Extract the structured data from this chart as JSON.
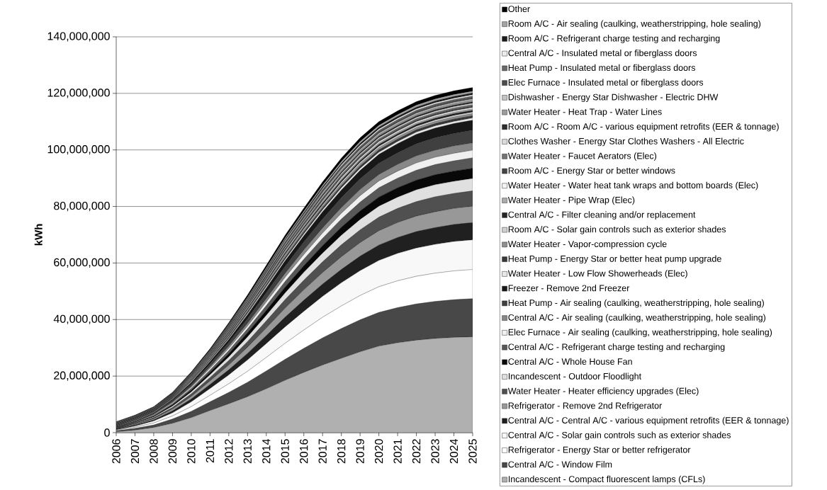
{
  "chart_data": {
    "type": "area",
    "stacked": true,
    "ylabel": "kWh",
    "legend": "right",
    "grid": "y",
    "categories": [
      "2006",
      "2007",
      "2008",
      "2009",
      "2010",
      "2011",
      "2012",
      "2013",
      "2014",
      "2015",
      "2016",
      "2017",
      "2018",
      "2019",
      "2020",
      "2021",
      "2022",
      "2023",
      "2024",
      "2025"
    ],
    "ylim": [
      0,
      140000000
    ],
    "yticks": [
      0,
      {
        "value": 20000000,
        "label": "20,000,000"
      },
      {
        "value": 40000000,
        "label": "40,000,000"
      },
      {
        "value": 60000000,
        "label": "60,000,000"
      },
      {
        "value": 80000000,
        "label": "80,000,000"
      },
      {
        "value": 100000000,
        "label": "100,000,000"
      },
      {
        "value": 120000000,
        "label": "120,000,000"
      },
      {
        "value": 140000000,
        "label": "140,000,000"
      }
    ],
    "series": [
      {
        "name": "Incandescent - Compact fluorescent lamps (CFLs)",
        "color": "#b0b0b0",
        "values": [
          300000,
          900000,
          1800000,
          3300000,
          5300000,
          7800000,
          10200000,
          12700000,
          15500000,
          18500000,
          21300000,
          23900000,
          26300000,
          28600000,
          30600000,
          31800000,
          32700000,
          33300000,
          33700000,
          33900000
        ]
      },
      {
        "name": "Central A/C - Window Film",
        "color": "#484848",
        "values": [
          300000,
          600000,
          900000,
          1500000,
          2200000,
          3100000,
          4000000,
          5100000,
          6300000,
          7400000,
          8500000,
          9600000,
          10500000,
          11300000,
          11900000,
          12400000,
          12800000,
          13100000,
          13300000,
          13500000
        ]
      },
      {
        "name": "Refrigerator - Energy Star or better refrigerator",
        "color": "#ffffff",
        "values": [
          200000,
          400000,
          700000,
          1100000,
          1700000,
          2300000,
          3100000,
          3900000,
          4800000,
          5700000,
          6500000,
          7300000,
          8000000,
          8600000,
          9100000,
          9500000,
          9800000,
          10000000,
          10200000,
          10300000
        ]
      },
      {
        "name": "Central A/C - Solar gain controls such as exterior shades",
        "color": "#f8f8f8",
        "values": [
          200000,
          400000,
          700000,
          1100000,
          1700000,
          2400000,
          3100000,
          4000000,
          4900000,
          5800000,
          6600000,
          7400000,
          8200000,
          8800000,
          9300000,
          9700000,
          10000000,
          10200000,
          10400000,
          10500000
        ]
      },
      {
        "name": "Central A/C - Central A/C - various equipment retrofits (EER & tonnage)",
        "color": "#202020",
        "values": [
          100000,
          300000,
          400000,
          700000,
          1000000,
          1400000,
          1800000,
          2300000,
          2800000,
          3400000,
          3900000,
          4300000,
          4700000,
          5100000,
          5400000,
          5600000,
          5800000,
          5900000,
          6000000,
          6100000
        ]
      },
      {
        "name": "Refrigerator - Remove 2nd Refrigerator",
        "color": "#989898",
        "values": [
          100000,
          200000,
          400000,
          600000,
          900000,
          1300000,
          1700000,
          2200000,
          2700000,
          3200000,
          3700000,
          4100000,
          4500000,
          4800000,
          5100000,
          5300000,
          5500000,
          5600000,
          5700000,
          5800000
        ]
      },
      {
        "name": "Water Heater - Heater efficiency upgrades (Elec)",
        "color": "#505050",
        "values": [
          100000,
          200000,
          400000,
          600000,
          900000,
          1200000,
          1600000,
          2000000,
          2500000,
          3000000,
          3400000,
          3800000,
          4200000,
          4500000,
          4800000,
          5000000,
          5100000,
          5300000,
          5300000,
          5400000
        ]
      },
      {
        "name": "Incandescent - Outdoor Floodlight",
        "color": "#e0e0e0",
        "values": [
          100000,
          200000,
          300000,
          500000,
          700000,
          1000000,
          1300000,
          1700000,
          2000000,
          2400000,
          2800000,
          3100000,
          3400000,
          3700000,
          3900000,
          4000000,
          4200000,
          4300000,
          4300000,
          4400000
        ]
      },
      {
        "name": "Central A/C - Whole House Fan",
        "color": "#080808",
        "values": [
          100000,
          100000,
          200000,
          400000,
          600000,
          800000,
          1100000,
          1400000,
          1700000,
          2000000,
          2300000,
          2600000,
          2800000,
          3000000,
          3200000,
          3300000,
          3400000,
          3500000,
          3600000,
          3600000
        ]
      },
      {
        "name": "Central A/C - Refrigerant charge testing and recharging",
        "color": "#585858",
        "values": [
          100000,
          200000,
          300000,
          400000,
          600000,
          800000,
          1100000,
          1400000,
          1700000,
          2000000,
          2300000,
          2600000,
          2900000,
          3100000,
          3300000,
          3400000,
          3500000,
          3600000,
          3600000,
          3700000
        ]
      },
      {
        "name": "Elec Furnace - Air sealing (caulking, weatherstripping, hole sealing)",
        "color": "#f0f0f0",
        "values": [
          100000,
          100000,
          200000,
          300000,
          400000,
          600000,
          800000,
          1000000,
          1300000,
          1500000,
          1700000,
          1900000,
          2100000,
          2300000,
          2400000,
          2500000,
          2600000,
          2600000,
          2700000,
          2700000
        ]
      },
      {
        "name": "Central A/C - Air sealing (caulking, weatherstripping, hole sealing)",
        "color": "#888888",
        "values": [
          100000,
          100000,
          200000,
          300000,
          400000,
          600000,
          800000,
          1000000,
          1200000,
          1400000,
          1600000,
          1800000,
          2000000,
          2200000,
          2300000,
          2400000,
          2500000,
          2500000,
          2600000,
          2600000
        ]
      },
      {
        "name": "Heat Pump - Air sealing (caulking, weatherstripping, hole sealing)",
        "color": "#404040",
        "values": [
          100000,
          200000,
          300000,
          500000,
          700000,
          1000000,
          1300000,
          1700000,
          2100000,
          2500000,
          2800000,
          3200000,
          3500000,
          3800000,
          4000000,
          4100000,
          4300000,
          4400000,
          4400000,
          4500000
        ]
      },
      {
        "name": "Freezer - Remove 2nd Freezer",
        "color": "#181818",
        "values": [
          100000,
          100000,
          200000,
          400000,
          600000,
          800000,
          1000000,
          1300000,
          1600000,
          1900000,
          2200000,
          2500000,
          2700000,
          2900000,
          3100000,
          3200000,
          3300000,
          3400000,
          3500000,
          3500000
        ]
      },
      {
        "name": "Water Heater - Low Flow Showerheads (Elec)",
        "color": "#e8e8e8",
        "values": [
          100000,
          200000,
          200000,
          200000,
          300000,
          300000,
          400000,
          500000,
          600000,
          600000,
          700000,
          700000,
          800000,
          800000,
          800000,
          800000,
          800000,
          800000,
          800000,
          800000
        ]
      },
      {
        "name": "Heat Pump - Energy Star or better heat pump upgrade",
        "color": "#383838",
        "values": [
          100000,
          200000,
          200000,
          200000,
          200000,
          300000,
          400000,
          500000,
          500000,
          600000,
          700000,
          700000,
          700000,
          800000,
          800000,
          800000,
          800000,
          800000,
          800000,
          800000
        ]
      },
      {
        "name": "Water Heater - Vapor-compression cycle",
        "color": "#909090",
        "values": [
          100000,
          100000,
          100000,
          200000,
          200000,
          300000,
          400000,
          400000,
          500000,
          600000,
          600000,
          600000,
          700000,
          700000,
          700000,
          700000,
          700000,
          700000,
          700000,
          700000
        ]
      },
      {
        "name": "Room A/C - Solar gain controls such as exterior shades",
        "color": "#d0d0d0",
        "values": [
          100000,
          100000,
          100000,
          100000,
          200000,
          300000,
          300000,
          400000,
          400000,
          500000,
          500000,
          500000,
          600000,
          600000,
          600000,
          600000,
          600000,
          600000,
          600000,
          600000
        ]
      },
      {
        "name": "Central A/C - Filter cleaning and/or replacement",
        "color": "#242424",
        "values": [
          100000,
          100000,
          100000,
          100000,
          200000,
          200000,
          300000,
          400000,
          400000,
          500000,
          500000,
          600000,
          600000,
          600000,
          600000,
          600000,
          600000,
          600000,
          600000,
          600000
        ]
      },
      {
        "name": "Water Heater - Pipe Wrap (Elec)",
        "color": "#acacac",
        "values": [
          100000,
          100000,
          100000,
          100000,
          200000,
          200000,
          300000,
          300000,
          400000,
          400000,
          400000,
          500000,
          500000,
          500000,
          500000,
          500000,
          500000,
          500000,
          500000,
          500000
        ]
      },
      {
        "name": "Water Heater - Water heat tank wraps and bottom boards (Elec)",
        "color": "#f4f4f4",
        "values": [
          100000,
          100000,
          100000,
          100000,
          200000,
          200000,
          200000,
          300000,
          300000,
          400000,
          400000,
          400000,
          500000,
          500000,
          500000,
          500000,
          500000,
          500000,
          500000,
          500000
        ]
      },
      {
        "name": "Room A/C - Energy Star or better windows",
        "color": "#444444",
        "values": [
          100000,
          100000,
          100000,
          100000,
          100000,
          200000,
          300000,
          300000,
          400000,
          400000,
          400000,
          500000,
          500000,
          500000,
          500000,
          500000,
          500000,
          500000,
          500000,
          500000
        ]
      },
      {
        "name": "Water Heater - Faucet Aerators (Elec)",
        "color": "#747474",
        "values": [
          100000,
          100000,
          100000,
          200000,
          200000,
          200000,
          300000,
          300000,
          400000,
          400000,
          500000,
          500000,
          500000,
          500000,
          500000,
          500000,
          500000,
          500000,
          500000,
          500000
        ]
      },
      {
        "name": "Clothes Washer - Energy Star Clothes Washers - All Electric",
        "color": "#dcdcdc",
        "values": [
          100000,
          100000,
          100000,
          100000,
          200000,
          200000,
          300000,
          300000,
          300000,
          400000,
          400000,
          500000,
          500000,
          500000,
          500000,
          500000,
          500000,
          500000,
          500000,
          500000
        ]
      },
      {
        "name": "Room A/C - Room A/C - various equipment retrofits (EER & tonnage)",
        "color": "#2c2c2c",
        "values": [
          100000,
          100000,
          100000,
          100000,
          200000,
          200000,
          300000,
          300000,
          400000,
          400000,
          400000,
          500000,
          500000,
          500000,
          500000,
          500000,
          500000,
          500000,
          500000,
          500000
        ]
      },
      {
        "name": "Water Heater - Heat Trap - Water Lines",
        "color": "#9c9c9c",
        "values": [
          100000,
          100000,
          100000,
          100000,
          200000,
          200000,
          200000,
          300000,
          300000,
          400000,
          400000,
          400000,
          500000,
          500000,
          500000,
          500000,
          500000,
          500000,
          500000,
          500000
        ]
      },
      {
        "name": "Dishwasher - Energy Star Dishwasher - Electric DHW",
        "color": "#c4c4c4",
        "values": [
          100000,
          100000,
          100000,
          100000,
          100000,
          200000,
          300000,
          300000,
          400000,
          400000,
          400000,
          500000,
          500000,
          500000,
          500000,
          500000,
          500000,
          500000,
          500000,
          500000
        ]
      },
      {
        "name": "Elec Furnace - Insulated metal or fiberglass doors",
        "color": "#4c4c4c",
        "values": [
          100000,
          100000,
          100000,
          200000,
          200000,
          200000,
          300000,
          300000,
          400000,
          400000,
          500000,
          500000,
          500000,
          500000,
          500000,
          500000,
          500000,
          500000,
          500000,
          500000
        ]
      },
      {
        "name": "Heat Pump - Insulated metal or fiberglass doors",
        "color": "#686868",
        "values": [
          100000,
          100000,
          100000,
          100000,
          200000,
          200000,
          300000,
          300000,
          300000,
          400000,
          400000,
          500000,
          500000,
          500000,
          500000,
          500000,
          500000,
          500000,
          500000,
          500000
        ]
      },
      {
        "name": "Central A/C - Insulated metal or fiberglass doors",
        "color": "#ececec",
        "values": [
          100000,
          100000,
          100000,
          100000,
          100000,
          200000,
          200000,
          300000,
          300000,
          400000,
          400000,
          400000,
          500000,
          500000,
          500000,
          500000,
          500000,
          500000,
          500000,
          500000
        ]
      },
      {
        "name": "Room A/C - Refrigerant charge testing and recharging",
        "color": "#1c1c1c",
        "values": [
          100000,
          100000,
          100000,
          100000,
          200000,
          200000,
          300000,
          300000,
          400000,
          400000,
          500000,
          500000,
          500000,
          600000,
          600000,
          600000,
          600000,
          600000,
          600000,
          600000
        ]
      },
      {
        "name": "Room A/C - Air sealing (caulking, weatherstripping, hole sealing)",
        "color": "#a4a4a4",
        "values": [
          100000,
          100000,
          100000,
          100000,
          200000,
          300000,
          300000,
          400000,
          500000,
          500000,
          600000,
          600000,
          700000,
          700000,
          700000,
          700000,
          700000,
          700000,
          700000,
          700000
        ]
      },
      {
        "name": "Other",
        "color": "#000000",
        "values": [
          100000,
          200000,
          200000,
          300000,
          400000,
          500000,
          600000,
          800000,
          900000,
          1000000,
          1100000,
          1200000,
          1200000,
          1300000,
          1300000,
          1300000,
          1300000,
          1300000,
          1300000,
          1300000
        ]
      }
    ]
  }
}
